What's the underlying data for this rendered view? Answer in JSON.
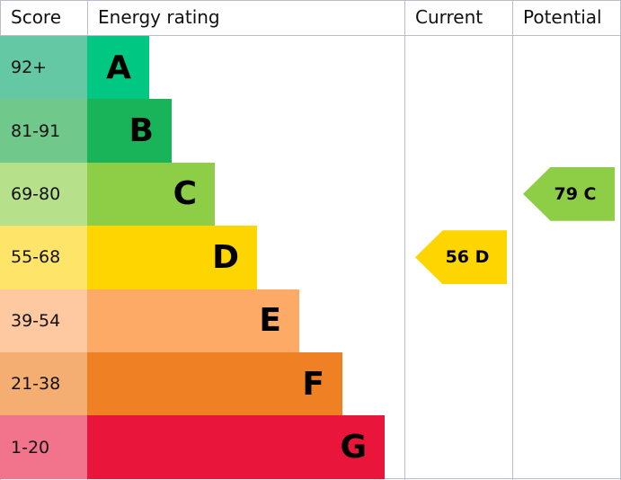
{
  "chart_data": {
    "type": "bar",
    "headers": {
      "score": "Score",
      "rating": "Energy rating",
      "current": "Current",
      "potential": "Potential"
    },
    "bands": [
      {
        "score": "92+",
        "letter": "A",
        "color": "#00c781",
        "score_color": "#64c8a4"
      },
      {
        "score": "81-91",
        "letter": "B",
        "color": "#19b459",
        "score_color": "#70c98b"
      },
      {
        "score": "69-80",
        "letter": "C",
        "color": "#8dce46",
        "score_color": "#b6e08a"
      },
      {
        "score": "55-68",
        "letter": "D",
        "color": "#ffd500",
        "score_color": "#ffe46a"
      },
      {
        "score": "39-54",
        "letter": "E",
        "color": "#fcaa65",
        "score_color": "#fec8a0"
      },
      {
        "score": "21-38",
        "letter": "F",
        "color": "#ef8023",
        "score_color": "#f4ae72"
      },
      {
        "score": "1-20",
        "letter": "G",
        "color": "#e9153b",
        "score_color": "#f2738c"
      }
    ],
    "current": {
      "value": 56,
      "band": "D",
      "label": "56 D",
      "color": "#ffd500"
    },
    "potential": {
      "value": 79,
      "band": "C",
      "label": "79 C",
      "color": "#8dce46"
    }
  }
}
